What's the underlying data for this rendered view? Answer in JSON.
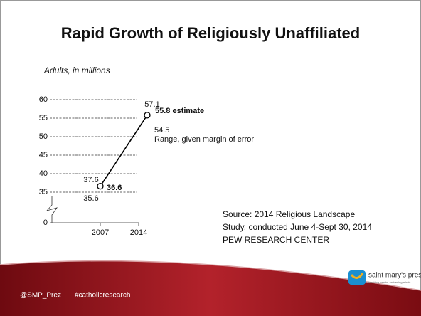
{
  "slide": {
    "title": "Rapid Growth of Religiously Unaffiliated",
    "source": [
      "Source: 2014 Religious Landscape",
      "Study, conducted June 4-Sept 30, 2014",
      "PEW RESEARCH CENTER"
    ],
    "footer": [
      "@SMP_Prez",
      "#catholicresearch"
    ],
    "logo": "saint mary's press",
    "logo_tagline": "teaching hearts, enlivening minds"
  },
  "chart_data": {
    "type": "line",
    "subtitle": "Adults, in millions",
    "categories": [
      "2007",
      "2014"
    ],
    "values": [
      36.6,
      55.8
    ],
    "value_labels": [
      "36.6",
      "55.8 estimate"
    ],
    "range": {
      "high": [
        37.6,
        57.1
      ],
      "low": [
        35.6,
        54.5
      ]
    },
    "range_label": "Range, given margin of error",
    "color": "#000000",
    "ylim": [
      35,
      60
    ],
    "yticks": [
      0,
      35,
      40,
      45,
      50,
      55,
      60
    ],
    "axis_break": true,
    "grid": true
  }
}
